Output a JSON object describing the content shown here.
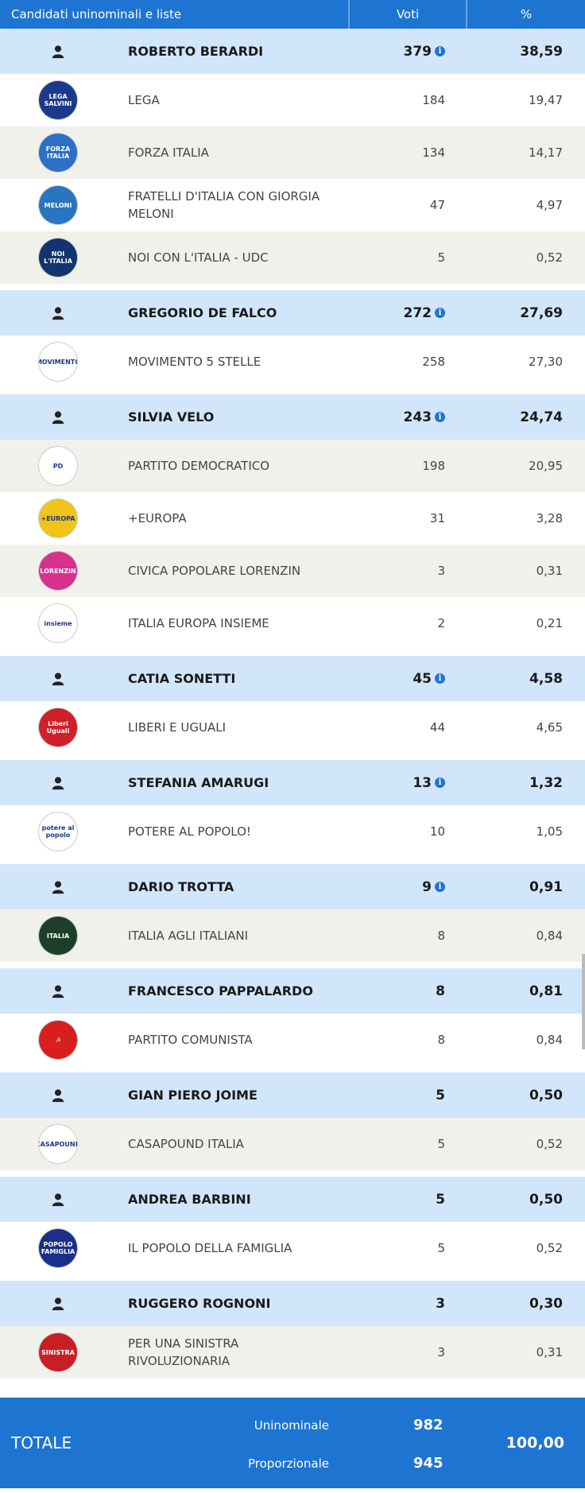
{
  "header": {
    "col_name": "Candidati uninominali e liste",
    "col_votes": "Voti",
    "col_pct": "%"
  },
  "colors": {
    "accent": "#1e74d1",
    "candidate_row": "#d2e6fb",
    "alt_row": "#f1f1ec"
  },
  "rows": [
    {
      "type": "cand",
      "name": "ROBERTO BERARDI",
      "votes": "379",
      "pct": "38,59",
      "info": true
    },
    {
      "type": "list",
      "name": "LEGA",
      "votes": "184",
      "pct": "19,47",
      "logo": "lega-logo",
      "logo_text": "LEGA SALVINI",
      "logo_color": "#1b3a8c",
      "alt": false
    },
    {
      "type": "list",
      "name": "FORZA ITALIA",
      "votes": "134",
      "pct": "14,17",
      "logo": "forza-italia-logo",
      "logo_text": "FORZA ITALIA",
      "logo_color": "#2b6fc7",
      "alt": true
    },
    {
      "type": "list",
      "name": "FRATELLI D'ITALIA CON GIORGIA MELONI",
      "votes": "47",
      "pct": "4,97",
      "logo": "fratelli-italia-logo",
      "logo_text": "MELONI",
      "logo_color": "#2a75c0",
      "alt": false
    },
    {
      "type": "list",
      "name": "NOI CON L'ITALIA - UDC",
      "votes": "5",
      "pct": "0,52",
      "logo": "noi-con-italia-logo",
      "logo_text": "NOI L'ITALIA",
      "logo_color": "#13346e",
      "alt": true
    },
    {
      "type": "cand",
      "name": "GREGORIO DE FALCO",
      "votes": "272",
      "pct": "27,69",
      "info": true
    },
    {
      "type": "list",
      "name": "MOVIMENTO 5 STELLE",
      "votes": "258",
      "pct": "27,30",
      "logo": "m5s-logo",
      "logo_text": "MOVIMENTO",
      "logo_color": "#ffffff",
      "alt": false
    },
    {
      "type": "cand",
      "name": "SILVIA VELO",
      "votes": "243",
      "pct": "24,74",
      "info": true
    },
    {
      "type": "list",
      "name": "PARTITO DEMOCRATICO",
      "votes": "198",
      "pct": "20,95",
      "logo": "pd-logo",
      "logo_text": "PD",
      "logo_color": "#ffffff",
      "alt": true
    },
    {
      "type": "list",
      "name": "+EUROPA",
      "votes": "31",
      "pct": "3,28",
      "logo": "piu-europa-logo",
      "logo_text": "+EUROPA",
      "logo_color": "#f0c419",
      "alt": false
    },
    {
      "type": "list",
      "name": "CIVICA POPOLARE LORENZIN",
      "votes": "3",
      "pct": "0,31",
      "logo": "civica-popolare-logo",
      "logo_text": "LORENZIN",
      "logo_color": "#d8318e",
      "alt": true
    },
    {
      "type": "list",
      "name": "ITALIA EUROPA INSIEME",
      "votes": "2",
      "pct": "0,21",
      "logo": "insieme-logo",
      "logo_text": "insieme",
      "logo_color": "#ffffff",
      "alt": false
    },
    {
      "type": "cand",
      "name": "CATIA SONETTI",
      "votes": "45",
      "pct": "4,58",
      "info": true
    },
    {
      "type": "list",
      "name": "LIBERI E UGUALI",
      "votes": "44",
      "pct": "4,65",
      "logo": "leu-logo",
      "logo_text": "Liberi Uguali",
      "logo_color": "#d0202a",
      "alt": false
    },
    {
      "type": "cand",
      "name": "STEFANIA AMARUGI",
      "votes": "13",
      "pct": "1,32",
      "info": true
    },
    {
      "type": "list",
      "name": "POTERE AL POPOLO!",
      "votes": "10",
      "pct": "1,05",
      "logo": "potere-al-popolo-logo",
      "logo_text": "potere al popolo",
      "logo_color": "#ffffff",
      "alt": false
    },
    {
      "type": "cand",
      "name": "DARIO TROTTA",
      "votes": "9",
      "pct": "0,91",
      "info": true
    },
    {
      "type": "list",
      "name": "ITALIA AGLI ITALIANI",
      "votes": "8",
      "pct": "0,84",
      "logo": "italia-agli-italiani-logo",
      "logo_text": "ITALIA",
      "logo_color": "#1d3f2a",
      "alt": true
    },
    {
      "type": "cand",
      "name": "FRANCESCO PAPPALARDO",
      "votes": "8",
      "pct": "0,81",
      "info": false
    },
    {
      "type": "list",
      "name": "PARTITO COMUNISTA",
      "votes": "8",
      "pct": "0,84",
      "logo": "partito-comunista-logo",
      "logo_text": "☭",
      "logo_color": "#d81e1e",
      "alt": false
    },
    {
      "type": "cand",
      "name": "GIAN PIERO JOIME",
      "votes": "5",
      "pct": "0,50",
      "info": false
    },
    {
      "type": "list",
      "name": "CASAPOUND ITALIA",
      "votes": "5",
      "pct": "0,52",
      "logo": "casapound-logo",
      "logo_text": "CASAPOUND",
      "logo_color": "#ffffff",
      "alt": true
    },
    {
      "type": "cand",
      "name": "ANDREA BARBINI",
      "votes": "5",
      "pct": "0,50",
      "info": false
    },
    {
      "type": "list",
      "name": "IL POPOLO DELLA FAMIGLIA",
      "votes": "5",
      "pct": "0,52",
      "logo": "popolo-famiglia-logo",
      "logo_text": "POPOLO FAMIGLIA",
      "logo_color": "#1a2f8a",
      "alt": false
    },
    {
      "type": "cand",
      "name": "RUGGERO ROGNONI",
      "votes": "3",
      "pct": "0,30",
      "info": false
    },
    {
      "type": "list",
      "name": "PER UNA SINISTRA RIVOLUZIONARIA",
      "votes": "3",
      "pct": "0,31",
      "logo": "sinistra-rivoluzionaria-logo",
      "logo_text": "SINISTRA",
      "logo_color": "#c81f25",
      "alt": true
    }
  ],
  "totals": {
    "label": "TOTALE",
    "uninominale_label": "Uninominale",
    "uninominale_votes": "982",
    "proporzionale_label": "Proporzionale",
    "proporzionale_votes": "945",
    "pct": "100,00"
  }
}
